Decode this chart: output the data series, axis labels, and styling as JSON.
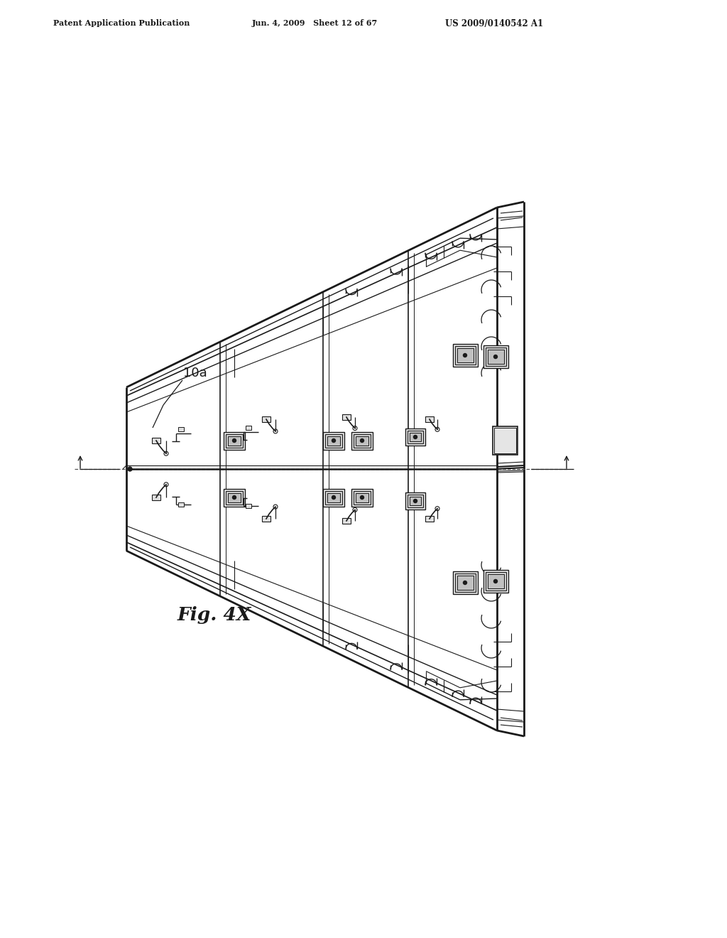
{
  "bg_color": "#ffffff",
  "line_color": "#1a1a1a",
  "header_left": "Patent Application Publication",
  "header_mid": "Jun. 4, 2009   Sheet 12 of 67",
  "header_right": "US 2009/0140542 A1",
  "fig_label": "Fig. 4X",
  "label_10a": "10a",
  "fig_width": 10.24,
  "fig_height": 13.2,
  "dpi": 100
}
